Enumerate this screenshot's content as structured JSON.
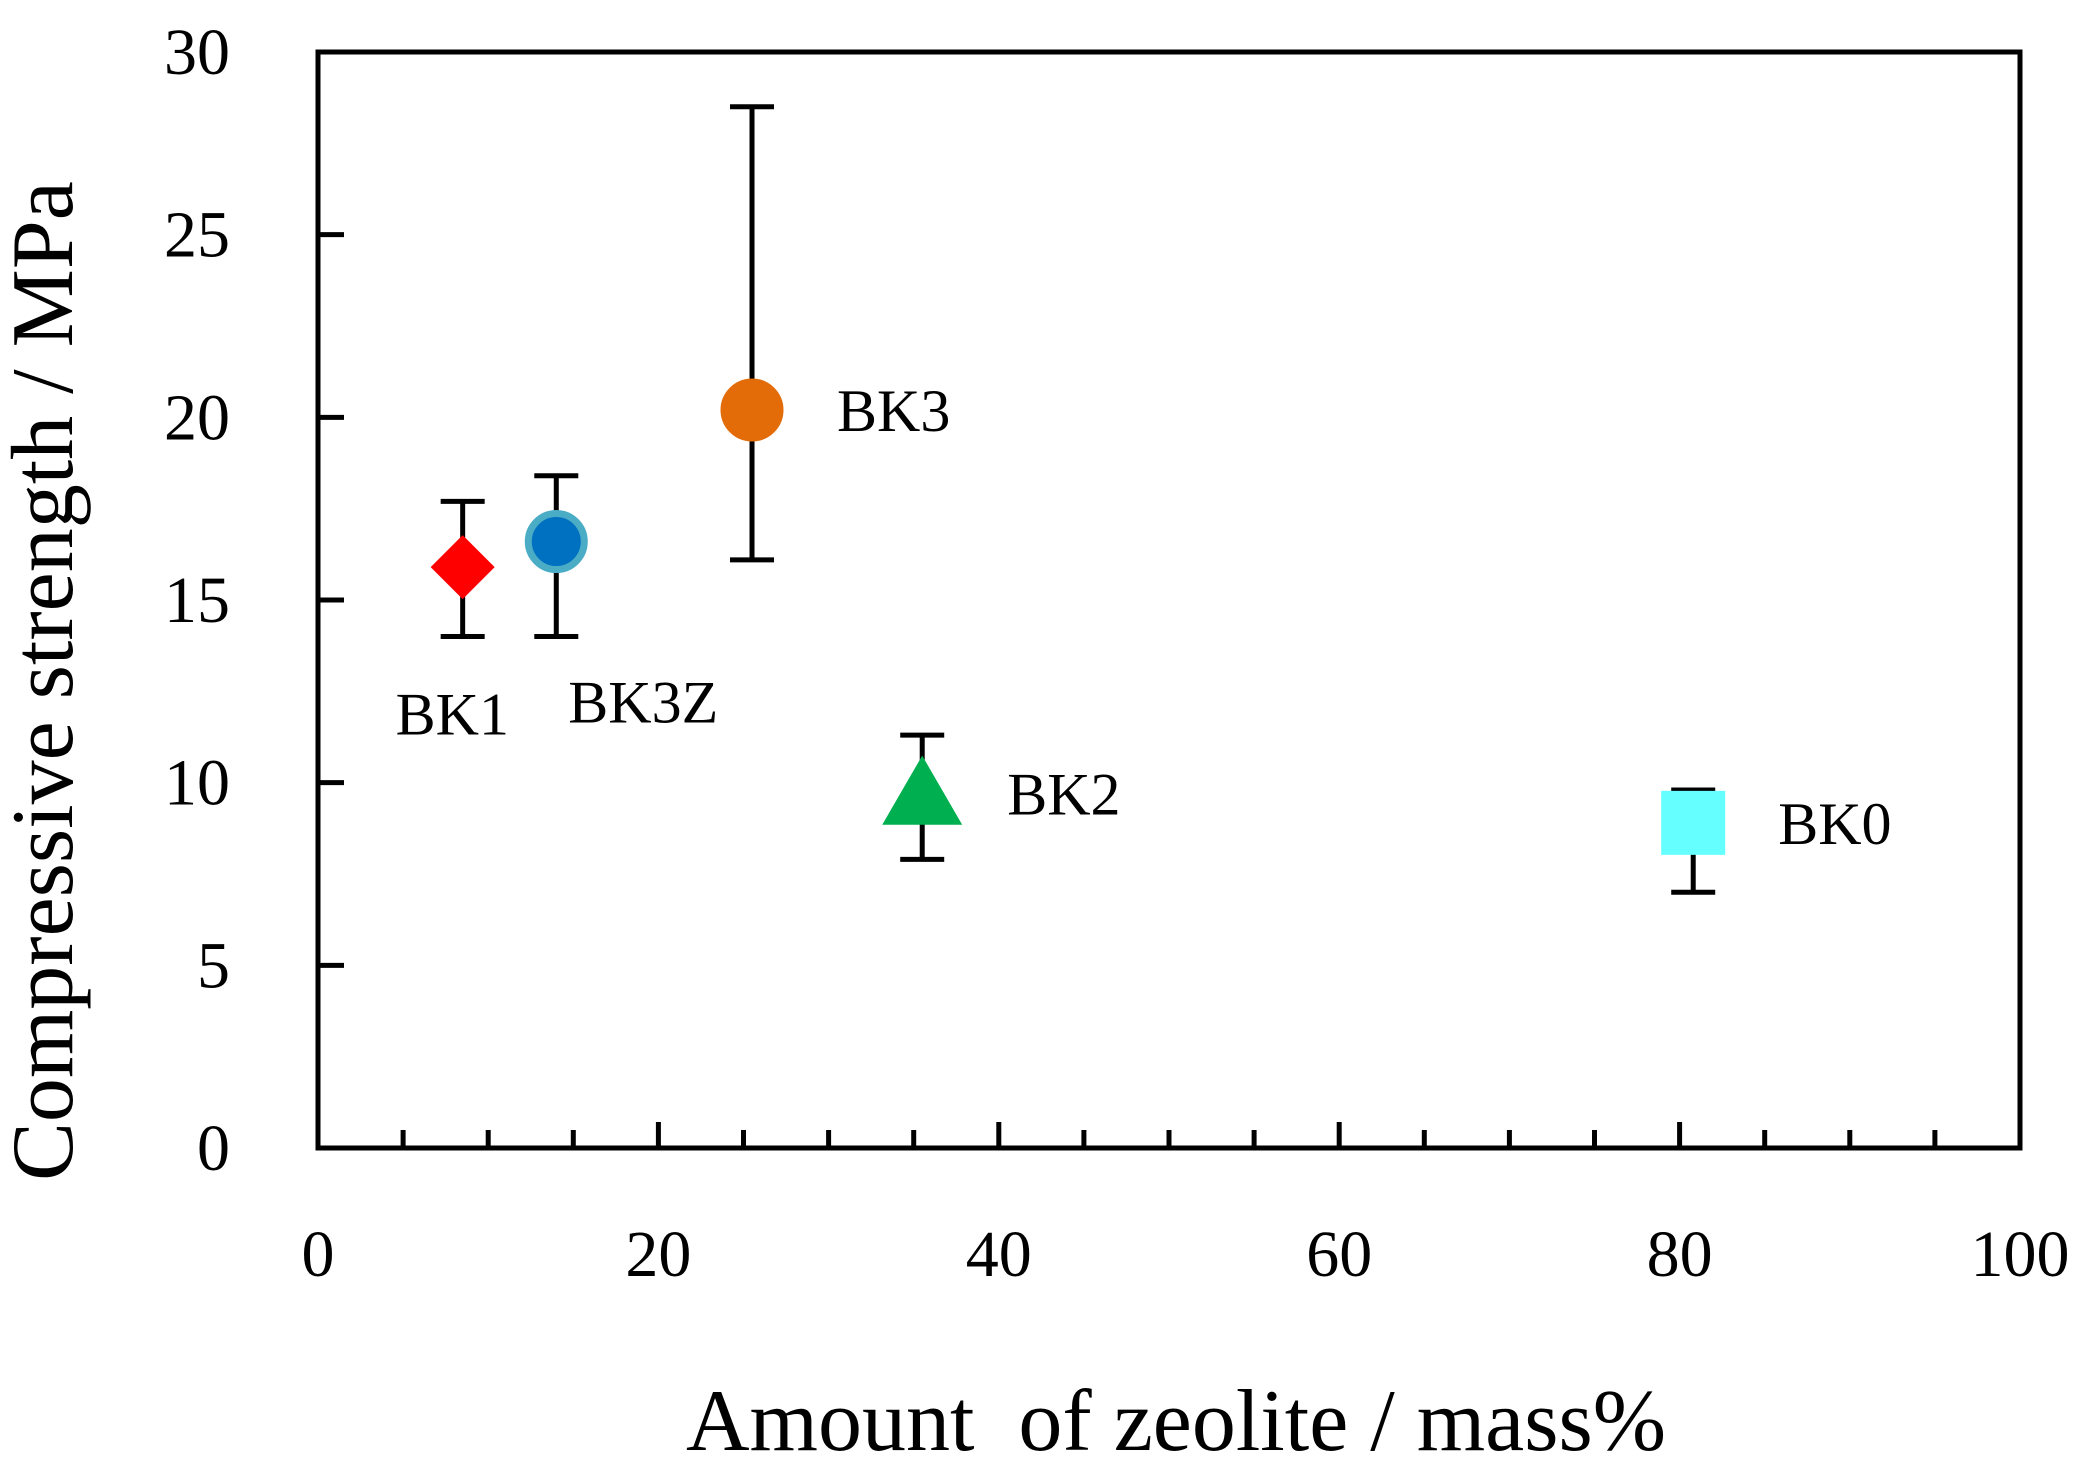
{
  "chart_data": {
    "type": "scatter",
    "title": "",
    "xlabel": "Amount  of zeolite / mass%",
    "ylabel": "Compressive strength / MPa",
    "xlim": [
      0,
      100
    ],
    "ylim": [
      0,
      30
    ],
    "x_major_ticks": [
      0,
      20,
      40,
      60,
      80,
      100
    ],
    "x_tick_labels": [
      "0",
      "20",
      "40",
      "60",
      "80",
      "100"
    ],
    "y_major_ticks": [
      0,
      5,
      10,
      15,
      20,
      25,
      30
    ],
    "y_tick_labels": [
      "0",
      "5",
      "10",
      "15",
      "20",
      "25",
      "30"
    ],
    "grid": false,
    "legend": "none",
    "points": [
      {
        "name": "BK1",
        "label": "BK1",
        "x": 8.5,
        "y": 15.9,
        "err_low": 14.0,
        "err_high": 17.7,
        "marker": "diamond",
        "color": "#ff0000",
        "edge_color": "#ff0000",
        "label_position": "below-left"
      },
      {
        "name": "BK3Z",
        "label": "BK3Z",
        "x": 14.0,
        "y": 16.6,
        "err_low": 14.0,
        "err_high": 18.4,
        "marker": "circle",
        "color": "#0070c0",
        "edge_color": "#4bacc6",
        "label_position": "below-right"
      },
      {
        "name": "BK3",
        "label": "BK3",
        "x": 25.5,
        "y": 20.2,
        "err_low": 16.1,
        "err_high": 28.5,
        "marker": "circle",
        "color": "#e36c09",
        "edge_color": "#e36c09",
        "label_position": "right"
      },
      {
        "name": "BK2",
        "label": "BK2",
        "x": 35.5,
        "y": 9.7,
        "err_low": 7.9,
        "err_high": 11.3,
        "marker": "triangle",
        "color": "#00b050",
        "edge_color": "#00b050",
        "label_position": "right"
      },
      {
        "name": "BK0",
        "label": "BK0",
        "x": 80.8,
        "y": 8.9,
        "err_low": 7.0,
        "err_high": 9.8,
        "marker": "square",
        "color": "#66ffff",
        "edge_color": "#66ffff",
        "label_position": "right"
      }
    ]
  }
}
